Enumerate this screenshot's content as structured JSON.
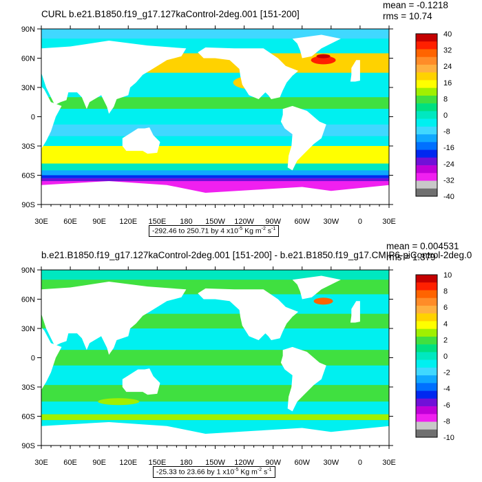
{
  "chart_data": [
    {
      "type": "heatmap",
      "title": "CURL b.e21.B1850.f19_g17.127kaControl-2deg.001 [151-200]",
      "stats": {
        "mean": "mean = -0.1218",
        "rms": "rms = 10.74"
      },
      "x_tick_labels": [
        "30E",
        "60E",
        "90E",
        "120E",
        "150E",
        "180",
        "150W",
        "120W",
        "90W",
        "60W",
        "30W",
        "0",
        "30E"
      ],
      "y_tick_labels": [
        "90N",
        "60N",
        "30N",
        "0",
        "30S",
        "60S",
        "90S"
      ],
      "xlim": [
        30,
        390
      ],
      "ylim": [
        -90,
        90
      ],
      "range_text": {
        "prefix": "-292.46 to 250.71 by 4 x10",
        "exp": "-5",
        "units": " Kg m",
        "exp2": "-2",
        "s": " s",
        "exp3": "-1"
      },
      "colorbar_labels": [
        "40",
        "32",
        "24",
        "16",
        "8",
        "0",
        "-8",
        "-16",
        "-24",
        "-32",
        "-40"
      ],
      "colorbar_colors": [
        "#c40000",
        "#ff2000",
        "#ff6400",
        "#ff8c28",
        "#ffb040",
        "#ffd200",
        "#ffff00",
        "#a0f000",
        "#40e040",
        "#00e080",
        "#00e8c0",
        "#00f0f0",
        "#40d8ff",
        "#10a8ff",
        "#0070ff",
        "#0028f0",
        "#7010d8",
        "#c000d8",
        "#f020f0",
        "#c8c8c8",
        "#707070"
      ],
      "grid": false,
      "legend": "right"
    },
    {
      "type": "heatmap",
      "title": "b.e21.B1850.f19_g17.127kaControl-2deg.001 [151-200] - b.e21.B1850.f19_g17.CMIP6-piControl-2deg.0",
      "stats": {
        "mean": "mean = 0.004531",
        "rms": "rms = 1.379"
      },
      "x_tick_labels": [
        "30E",
        "60E",
        "90E",
        "120E",
        "150E",
        "180",
        "150W",
        "120W",
        "90W",
        "60W",
        "30W",
        "0",
        "30E"
      ],
      "y_tick_labels": [
        "90N",
        "60N",
        "30N",
        "0",
        "30S",
        "60S",
        "90S"
      ],
      "xlim": [
        30,
        390
      ],
      "ylim": [
        -90,
        90
      ],
      "range_text": {
        "prefix": "-25.33 to 23.66 by 1 x10",
        "exp": "-5",
        "units": " Kg m",
        "exp2": "-2",
        "s": " s",
        "exp3": "-1"
      },
      "colorbar_labels": [
        "10",
        "8",
        "6",
        "4",
        "2",
        "0",
        "-2",
        "-4",
        "-6",
        "-8",
        "-10"
      ],
      "colorbar_colors": [
        "#c40000",
        "#ff2000",
        "#ff6400",
        "#ff8c28",
        "#ffb040",
        "#ffd200",
        "#ffff00",
        "#a0f000",
        "#40e040",
        "#00e080",
        "#00e8c0",
        "#00f0f0",
        "#40d8ff",
        "#10a8ff",
        "#0070ff",
        "#0028f0",
        "#7010d8",
        "#c000d8",
        "#f020f0",
        "#c8c8c8",
        "#707070"
      ],
      "grid": false,
      "legend": "right"
    }
  ]
}
